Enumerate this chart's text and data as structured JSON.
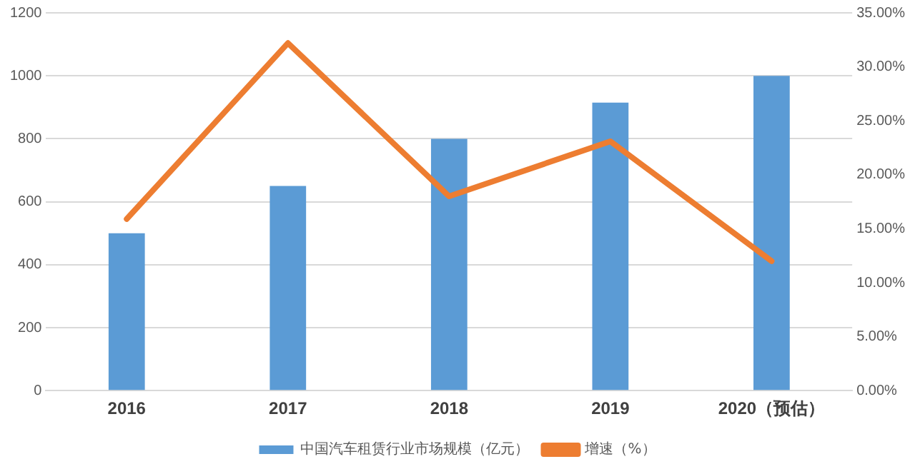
{
  "chart_data": {
    "type": "bar",
    "categories": [
      "2016",
      "2017",
      "2018",
      "2019",
      "2020（预估）"
    ],
    "series": [
      {
        "name": "中国汽车租赁行业市场规模（亿元）",
        "color": "#5b9bd5",
        "values": [
          500,
          650,
          800,
          915,
          1000
        ]
      },
      {
        "name": "增速（%）",
        "type": "line",
        "axis": "y2",
        "color": "#ed7d31",
        "values": [
          15.9,
          32.2,
          18.0,
          23.1,
          12.0
        ]
      }
    ],
    "ylim": [
      0,
      1200
    ],
    "yticks": [
      0,
      200,
      400,
      600,
      800,
      1000,
      1200
    ],
    "y2lim": [
      0,
      35
    ],
    "y2ticks": [
      {
        "value": 0,
        "label": "0.00%"
      },
      {
        "value": 5,
        "label": "5.00%"
      },
      {
        "value": 10,
        "label": "10.00%"
      },
      {
        "value": 15,
        "label": "15.00%"
      },
      {
        "value": 20,
        "label": "20.00%"
      },
      {
        "value": 25,
        "label": "25.00%"
      },
      {
        "value": 30,
        "label": "30.00%"
      },
      {
        "value": 35,
        "label": "35.00%"
      }
    ],
    "grid": "y",
    "legend": "bottom",
    "marker": "none",
    "line_style": "solid"
  }
}
